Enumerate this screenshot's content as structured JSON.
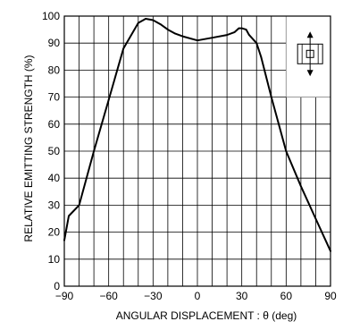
{
  "chart_data": {
    "type": "line",
    "xlabel": "ANGULAR DISPLACEMENT : θ (deg)",
    "ylabel": "RELATIVE EMITTING STRENGTH (%)",
    "xlim": [
      -90,
      90
    ],
    "ylim": [
      0,
      100
    ],
    "x_ticks": [
      -90,
      -60,
      -30,
      0,
      30,
      60,
      90
    ],
    "x_tick_labels": [
      "−90",
      "−60",
      "−30",
      "0",
      "30",
      "60",
      "90"
    ],
    "y_ticks": [
      0,
      10,
      20,
      30,
      40,
      50,
      60,
      70,
      80,
      90,
      100
    ],
    "y_tick_labels": [
      "0",
      "10",
      "20",
      "30",
      "40",
      "50",
      "60",
      "70",
      "80",
      "90",
      "100"
    ],
    "x_grid_step": 10,
    "y_grid_step": 10,
    "grid": true,
    "inset_icon": "led-package-orientation-icon",
    "series": [
      {
        "color": "#000000",
        "x": [
          -90,
          -87,
          -80,
          -70,
          -60,
          -50,
          -40,
          -35,
          -30,
          -25,
          -20,
          -15,
          -10,
          0,
          10,
          20,
          25,
          28,
          30,
          33,
          35,
          40,
          43,
          50,
          60,
          70,
          80,
          90
        ],
        "y": [
          17,
          26,
          30,
          50,
          69,
          88,
          97.5,
          99,
          98.5,
          97,
          95,
          93.5,
          92.5,
          91,
          92,
          93,
          94,
          95.5,
          95.5,
          95,
          93,
          90,
          85,
          70,
          50,
          37,
          25,
          13
        ]
      }
    ]
  }
}
